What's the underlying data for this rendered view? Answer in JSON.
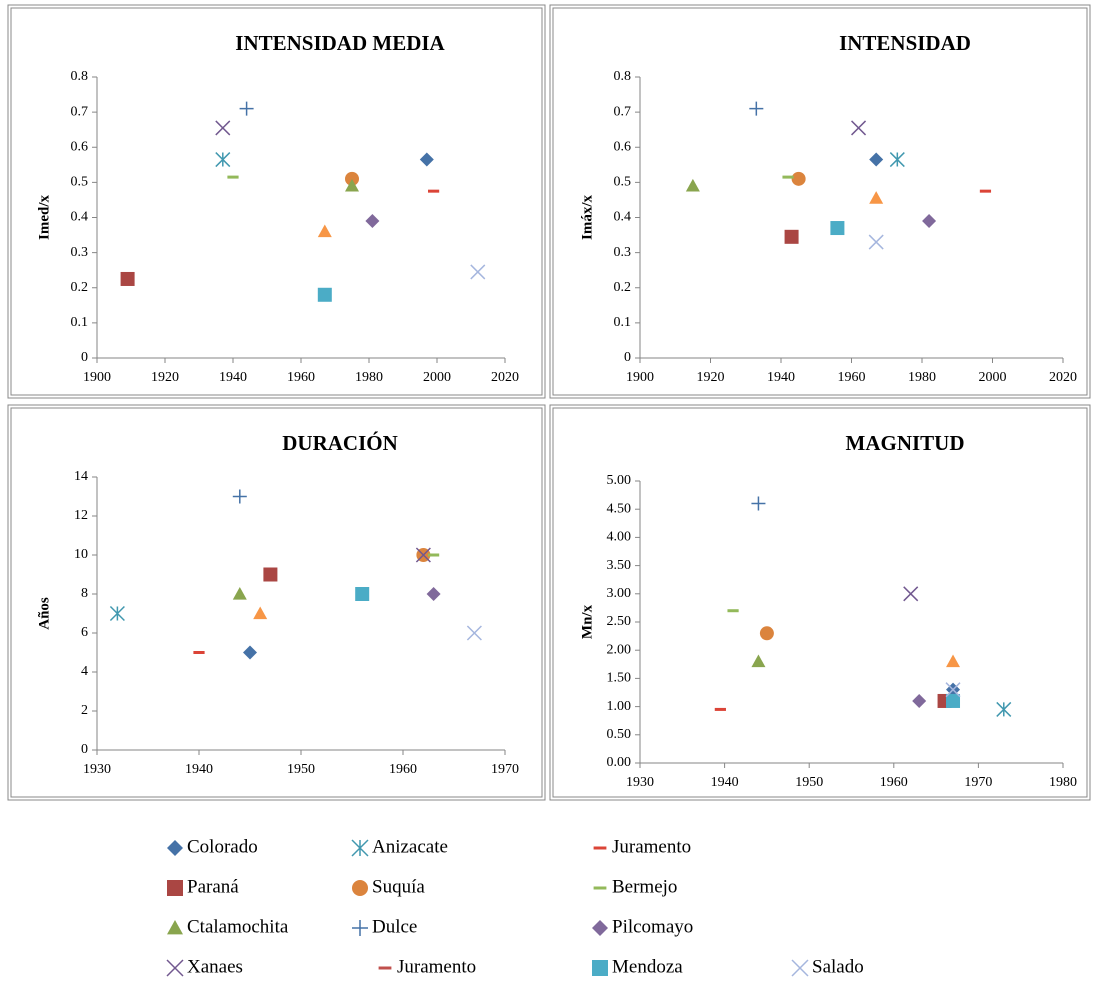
{
  "chart_data": [
    {
      "type": "scatter",
      "title": "INTENSIDAD MEDIA",
      "y_label": "Imed/x",
      "xlim": [
        1900,
        2020
      ],
      "xticks": [
        1900,
        1920,
        1940,
        1960,
        1980,
        2000,
        2020
      ],
      "ylim": [
        0,
        0.8
      ],
      "yticks": [
        0,
        0.1,
        0.2,
        0.3,
        0.4,
        0.5,
        0.6,
        0.7,
        0.8
      ],
      "series": [
        {
          "name": "Colorado",
          "color": "#4572A7",
          "marker": "diamond",
          "x": [
            1997
          ],
          "values": [
            0.565
          ]
        },
        {
          "name": "Anizacate",
          "color": "#4198AF",
          "marker": "asterisk",
          "x": [
            1937
          ],
          "values": [
            0.565
          ]
        },
        {
          "name": "Juramento",
          "color": "#DB4437",
          "marker": "dash",
          "x": [
            1999
          ],
          "values": [
            0.475
          ]
        },
        {
          "name": "Paraná",
          "color": "#AA4643",
          "marker": "square",
          "x": [
            1909
          ],
          "values": [
            0.225
          ]
        },
        {
          "name": "Suquía",
          "color": "#DB843D",
          "marker": "circle",
          "x": [
            1975
          ],
          "values": [
            0.51
          ]
        },
        {
          "name": "Bermejo",
          "color": "#93B95A",
          "marker": "dash",
          "x": [
            1940
          ],
          "values": [
            0.515
          ]
        },
        {
          "name": "Ctalamochita",
          "color": "#89A54E",
          "marker": "triangle",
          "x": [
            1975
          ],
          "values": [
            0.49
          ]
        },
        {
          "name": "Dulce",
          "color": "#4572A7",
          "marker": "plus",
          "x": [
            1944
          ],
          "values": [
            0.71
          ]
        },
        {
          "name": "Pilcomayo",
          "color": "#80699B",
          "marker": "diamond",
          "x": [
            1981
          ],
          "values": [
            0.39
          ]
        },
        {
          "name": "Xanaes",
          "color": "#71588F",
          "marker": "x",
          "x": [
            1937
          ],
          "values": [
            0.655
          ]
        },
        {
          "name": "Juramento",
          "color": "#C0504D",
          "marker": "dash",
          "x": [
            null
          ],
          "values": [
            null
          ]
        },
        {
          "name": "Mendoza",
          "color": "#4BACC6",
          "marker": "square",
          "x": [
            1967
          ],
          "values": [
            0.18
          ]
        },
        {
          "name": "Salado",
          "color": "#A5B6DE",
          "marker": "x",
          "x": [
            2012
          ],
          "values": [
            0.245
          ]
        },
        {
          "color": "#F79646",
          "marker": "triangle",
          "x": [
            1967
          ],
          "values": [
            0.36
          ]
        }
      ]
    },
    {
      "type": "scatter",
      "title": "INTENSIDAD",
      "y_label": "Imáx/x",
      "xlim": [
        1900,
        2020
      ],
      "xticks": [
        1900,
        1920,
        1940,
        1960,
        1980,
        2000,
        2020
      ],
      "ylim": [
        0,
        0.8
      ],
      "yticks": [
        0,
        0.1,
        0.2,
        0.3,
        0.4,
        0.5,
        0.6,
        0.7,
        0.8
      ],
      "series": [
        {
          "name": "Colorado",
          "color": "#4572A7",
          "marker": "diamond",
          "x": [
            1967
          ],
          "values": [
            0.565
          ]
        },
        {
          "name": "Anizacate",
          "color": "#4198AF",
          "marker": "asterisk",
          "x": [
            1973
          ],
          "values": [
            0.565
          ]
        },
        {
          "name": "Juramento",
          "color": "#DB4437",
          "marker": "dash",
          "x": [
            1998
          ],
          "values": [
            0.475
          ]
        },
        {
          "name": "Paraná",
          "color": "#AA4643",
          "marker": "square",
          "x": [
            1943
          ],
          "values": [
            0.345
          ]
        },
        {
          "name": "Suquía",
          "color": "#DB843D",
          "marker": "circle",
          "x": [
            1945
          ],
          "values": [
            0.51
          ]
        },
        {
          "name": "Bermejo",
          "color": "#93B95A",
          "marker": "dash",
          "x": [
            1942
          ],
          "values": [
            0.515
          ]
        },
        {
          "name": "Ctalamochita",
          "color": "#89A54E",
          "marker": "triangle",
          "x": [
            1915
          ],
          "values": [
            0.49
          ]
        },
        {
          "name": "Dulce",
          "color": "#4572A7",
          "marker": "plus",
          "x": [
            1933
          ],
          "values": [
            0.71
          ]
        },
        {
          "name": "Pilcomayo",
          "color": "#80699B",
          "marker": "diamond",
          "x": [
            1982
          ],
          "values": [
            0.39
          ]
        },
        {
          "name": "Xanaes",
          "color": "#71588F",
          "marker": "x",
          "x": [
            1962
          ],
          "values": [
            0.655
          ]
        },
        {
          "name": "Juramento",
          "color": "#C0504D",
          "marker": "dash",
          "x": [
            null
          ],
          "values": [
            null
          ]
        },
        {
          "name": "Mendoza",
          "color": "#4BACC6",
          "marker": "square",
          "x": [
            1956
          ],
          "values": [
            0.37
          ]
        },
        {
          "name": "Salado",
          "color": "#A5B6DE",
          "marker": "x",
          "x": [
            1967
          ],
          "values": [
            0.33
          ]
        },
        {
          "color": "#F79646",
          "marker": "triangle",
          "x": [
            1967
          ],
          "values": [
            0.455
          ]
        }
      ]
    },
    {
      "type": "scatter",
      "title": "DURACIÓN",
      "y_label": "Años",
      "xlim": [
        1930,
        1970
      ],
      "xticks": [
        1930,
        1940,
        1950,
        1960,
        1970
      ],
      "ylim": [
        0,
        14
      ],
      "yticks": [
        0,
        2,
        4,
        6,
        8,
        10,
        12,
        14
      ],
      "series": [
        {
          "name": "Colorado",
          "color": "#4572A7",
          "marker": "diamond",
          "x": [
            1945
          ],
          "values": [
            5
          ]
        },
        {
          "name": "Anizacate",
          "color": "#4198AF",
          "marker": "asterisk",
          "x": [
            1932
          ],
          "values": [
            7
          ]
        },
        {
          "name": "Juramento",
          "color": "#DB4437",
          "marker": "dash",
          "x": [
            1940
          ],
          "values": [
            5
          ]
        },
        {
          "name": "Paraná",
          "color": "#AA4643",
          "marker": "square",
          "x": [
            1947
          ],
          "values": [
            9
          ]
        },
        {
          "name": "Suquía",
          "color": "#DB843D",
          "marker": "circle",
          "x": [
            1962
          ],
          "values": [
            10
          ]
        },
        {
          "name": "Bermejo",
          "color": "#93B95A",
          "marker": "dash",
          "x": [
            1963
          ],
          "values": [
            10
          ]
        },
        {
          "name": "Ctalamochita",
          "color": "#89A54E",
          "marker": "triangle",
          "x": [
            1944
          ],
          "values": [
            8
          ]
        },
        {
          "name": "Dulce",
          "color": "#4572A7",
          "marker": "plus",
          "x": [
            1944
          ],
          "values": [
            13
          ]
        },
        {
          "name": "Pilcomayo",
          "color": "#80699B",
          "marker": "diamond",
          "x": [
            1963
          ],
          "values": [
            8
          ]
        },
        {
          "name": "Xanaes",
          "color": "#71588F",
          "marker": "x",
          "x": [
            1962
          ],
          "values": [
            10
          ]
        },
        {
          "name": "Juramento",
          "color": "#C0504D",
          "marker": "dash",
          "x": [
            null
          ],
          "values": [
            null
          ]
        },
        {
          "name": "Mendoza",
          "color": "#4BACC6",
          "marker": "square",
          "x": [
            1956
          ],
          "values": [
            8
          ]
        },
        {
          "name": "Salado",
          "color": "#A5B6DE",
          "marker": "x",
          "x": [
            1967
          ],
          "values": [
            6
          ]
        },
        {
          "color": "#F79646",
          "marker": "triangle",
          "x": [
            1946
          ],
          "values": [
            7
          ]
        }
      ]
    },
    {
      "type": "scatter",
      "title": "MAGNITUD",
      "y_label": "Mn/x",
      "xlim": [
        1930,
        1980
      ],
      "xticks": [
        1930,
        1940,
        1950,
        1960,
        1970,
        1980
      ],
      "ylim": [
        0,
        5
      ],
      "yticks": [
        {
          "value": 0,
          "label": "0.00"
        },
        {
          "value": 0.5,
          "label": "0.50"
        },
        {
          "value": 1,
          "label": "1.00"
        },
        {
          "value": 1.5,
          "label": "1.50"
        },
        {
          "value": 2,
          "label": "2.00"
        },
        {
          "value": 2.5,
          "label": "2.50"
        },
        {
          "value": 3,
          "label": "3.00"
        },
        {
          "value": 3.5,
          "label": "3.50"
        },
        {
          "value": 4,
          "label": "4.00"
        },
        {
          "value": 4.5,
          "label": "4.50"
        },
        {
          "value": 5,
          "label": "5.00"
        }
      ],
      "series": [
        {
          "name": "Colorado",
          "color": "#4572A7",
          "marker": "diamond",
          "x": [
            1967
          ],
          "values": [
            1.3
          ]
        },
        {
          "name": "Anizacate",
          "color": "#4198AF",
          "marker": "asterisk",
          "x": [
            1973
          ],
          "values": [
            0.95
          ]
        },
        {
          "name": "Juramento",
          "color": "#DB4437",
          "marker": "dash",
          "x": [
            1939.5
          ],
          "values": [
            0.95
          ]
        },
        {
          "name": "Paraná",
          "color": "#AA4643",
          "marker": "square",
          "x": [
            1966
          ],
          "values": [
            1.1
          ]
        },
        {
          "name": "Suquía",
          "color": "#DB843D",
          "marker": "circle",
          "x": [
            1945
          ],
          "values": [
            2.3
          ]
        },
        {
          "name": "Bermejo",
          "color": "#93B95A",
          "marker": "dash",
          "x": [
            1941
          ],
          "values": [
            2.7
          ]
        },
        {
          "name": "Ctalamochita",
          "color": "#89A54E",
          "marker": "triangle",
          "x": [
            1944
          ],
          "values": [
            1.8
          ]
        },
        {
          "name": "Dulce",
          "color": "#4572A7",
          "marker": "plus",
          "x": [
            1944
          ],
          "values": [
            4.6
          ]
        },
        {
          "name": "Pilcomayo",
          "color": "#80699B",
          "marker": "diamond",
          "x": [
            1963
          ],
          "values": [
            1.1
          ]
        },
        {
          "name": "Xanaes",
          "color": "#71588F",
          "marker": "x",
          "x": [
            1962
          ],
          "values": [
            3.0
          ]
        },
        {
          "name": "Juramento",
          "color": "#C0504D",
          "marker": "dash",
          "x": [
            null
          ],
          "values": [
            null
          ]
        },
        {
          "name": "Mendoza",
          "color": "#4BACC6",
          "marker": "square",
          "x": [
            1967
          ],
          "values": [
            1.1
          ]
        },
        {
          "name": "Salado",
          "color": "#A5B6DE",
          "marker": "x",
          "x": [
            1967
          ],
          "values": [
            1.3
          ]
        },
        {
          "color": "#F79646",
          "marker": "triangle",
          "x": [
            1967
          ],
          "values": [
            1.8
          ]
        }
      ]
    }
  ]
}
